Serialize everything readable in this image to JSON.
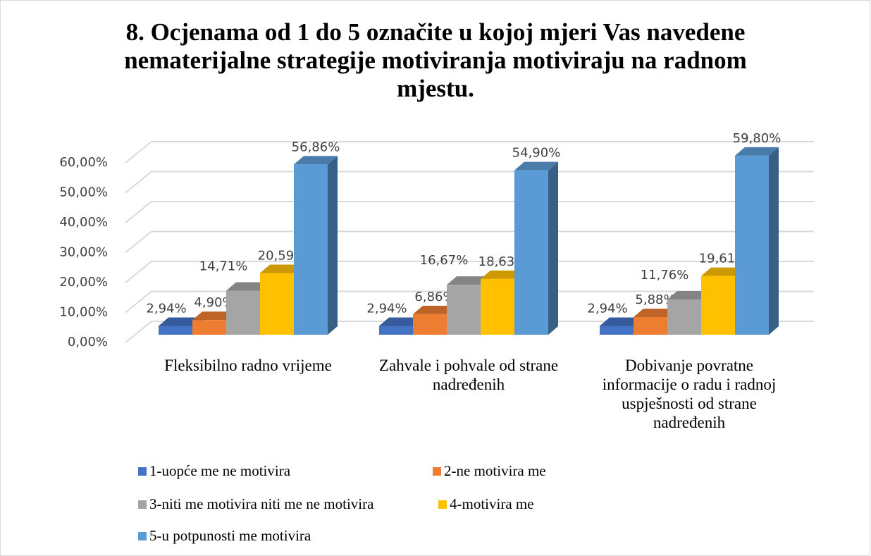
{
  "chart_data": {
    "type": "bar3d",
    "title": "8. Ocjenama od 1 do 5 označite u kojoj mjeri Vas navedene nematerijalne strategije motiviranja motiviraju na radnom mjestu.",
    "categories": [
      "Fleksibilno radno vrijeme",
      "Zahvale i pohvale od strane nadređenih",
      "Dobivanje povratne informacije o radu i radnoj uspješnosti od strane nadređenih"
    ],
    "series": [
      {
        "name": "1-uopće me ne motivira",
        "color": "#4472c4",
        "values": [
          2.94,
          2.94,
          2.94
        ],
        "value_labels": [
          "2,94%",
          "2,94%",
          "2,94%"
        ]
      },
      {
        "name": "2-ne motivira me",
        "color": "#ed7d31",
        "values": [
          4.9,
          6.86,
          5.88
        ],
        "value_labels": [
          "4,90%",
          "6,86%",
          "5,88%"
        ]
      },
      {
        "name": "3-niti me motivira niti me ne motivira",
        "color": "#a5a5a5",
        "values": [
          14.71,
          16.67,
          11.76
        ],
        "value_labels": [
          "14,71%",
          "16,67%",
          "11,76%"
        ]
      },
      {
        "name": "4-motivira me",
        "color": "#ffc000",
        "values": [
          20.59,
          18.63,
          19.61
        ],
        "value_labels": [
          "20,59%",
          "18,63%",
          "19,61%"
        ]
      },
      {
        "name": "5-u potpunosti me motivira",
        "color": "#5b9bd5",
        "values": [
          56.86,
          54.9,
          59.8
        ],
        "value_labels": [
          "56,86%",
          "54,90%",
          "59,80%"
        ]
      }
    ],
    "ylim": [
      0,
      60
    ],
    "yticks": [
      {
        "value": 0,
        "label": "0,00%"
      },
      {
        "value": 10,
        "label": "10,00%"
      },
      {
        "value": 20,
        "label": "20,00%"
      },
      {
        "value": 30,
        "label": "30,00%"
      },
      {
        "value": 40,
        "label": "40,00%"
      },
      {
        "value": 50,
        "label": "50,00%"
      },
      {
        "value": 60,
        "label": "60,00%"
      }
    ],
    "grid": true,
    "legend": "bottom"
  }
}
